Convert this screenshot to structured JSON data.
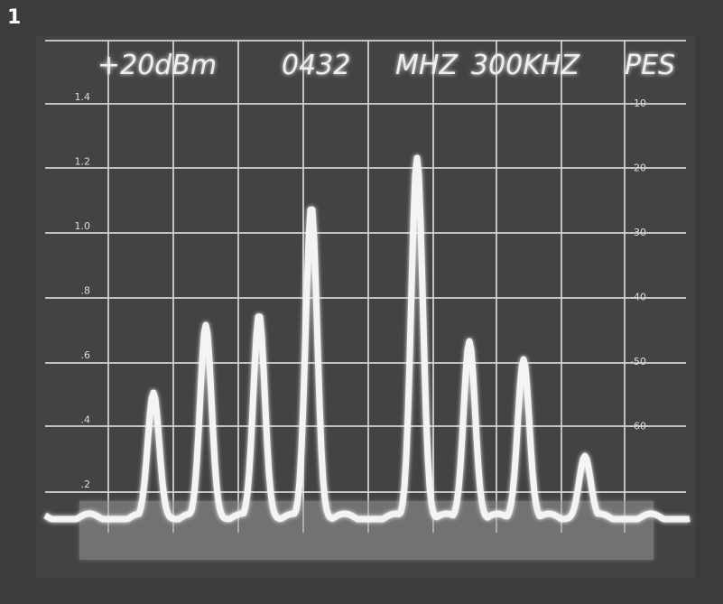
{
  "panel_label": "1",
  "header": {
    "reference": "+20dBm",
    "center": "0432",
    "unit": "MHZ",
    "span": "300KHZ",
    "mode": "PES"
  },
  "left_scale": [
    "1.4",
    "1.2",
    "1.0",
    ".8",
    ".6",
    ".4",
    ".2"
  ],
  "right_scale": [
    "-10",
    "-20",
    "-30",
    "-40",
    "-50",
    "-60"
  ]
}
